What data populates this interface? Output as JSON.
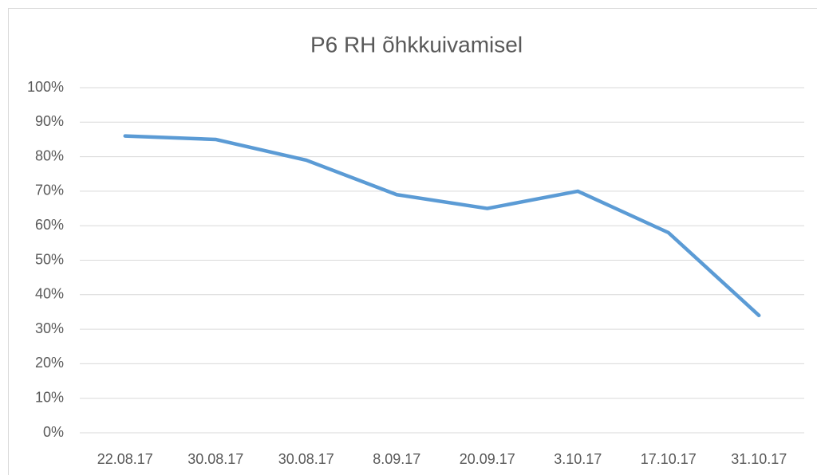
{
  "chart_data": {
    "type": "line",
    "title": "P6 RH õhkkuivamisel",
    "categories": [
      "22.08.17",
      "30.08.17",
      "30.08.17",
      "8.09.17",
      "20.09.17",
      "3.10.17",
      "17.10.17",
      "31.10.17"
    ],
    "series": [
      {
        "color": "#5b9bd5",
        "values": [
          86,
          85,
          79,
          69,
          65,
          70,
          58,
          34
        ]
      }
    ],
    "ylim": [
      0,
      100
    ],
    "yticks": [
      {
        "value": 0,
        "label": "0%"
      },
      {
        "value": 10,
        "label": "10%"
      },
      {
        "value": 20,
        "label": "20%"
      },
      {
        "value": 30,
        "label": "30%"
      },
      {
        "value": 40,
        "label": "40%"
      },
      {
        "value": 50,
        "label": "50%"
      },
      {
        "value": 60,
        "label": "60%"
      },
      {
        "value": 70,
        "label": "70%"
      },
      {
        "value": 80,
        "label": "80%"
      },
      {
        "value": 90,
        "label": "90%"
      },
      {
        "value": 100,
        "label": "100%"
      }
    ],
    "grid": true
  }
}
